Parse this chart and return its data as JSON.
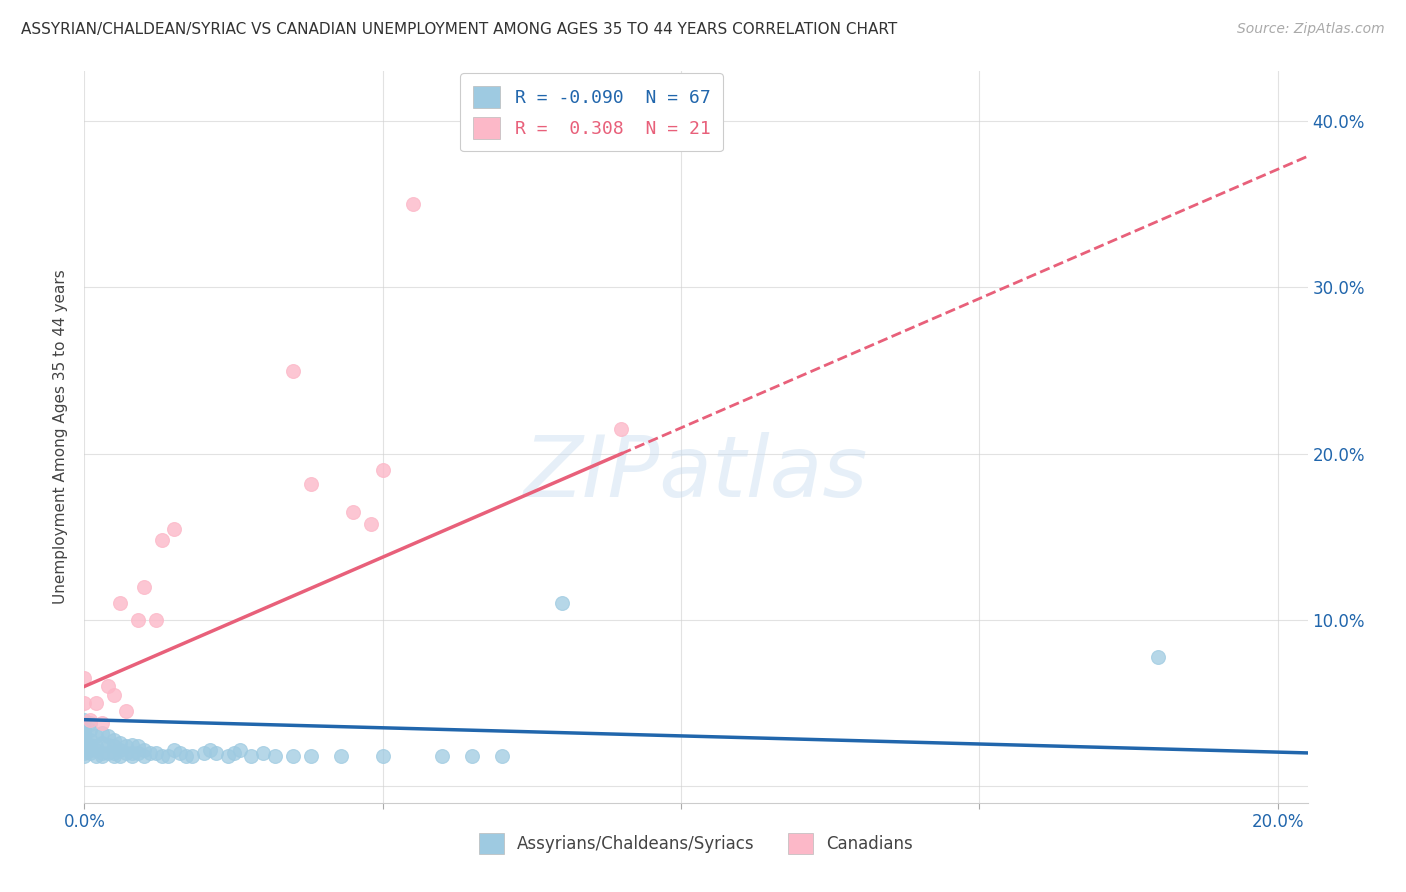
{
  "title": "ASSYRIAN/CHALDEAN/SYRIAC VS CANADIAN UNEMPLOYMENT AMONG AGES 35 TO 44 YEARS CORRELATION CHART",
  "source": "Source: ZipAtlas.com",
  "ylabel": "Unemployment Among Ages 35 to 44 years",
  "xlim": [
    0.0,
    0.205
  ],
  "ylim": [
    -0.01,
    0.43
  ],
  "legend_r_blue": "-0.090",
  "legend_n_blue": "67",
  "legend_r_pink": "0.308",
  "legend_n_pink": "21",
  "blue_color": "#9ecae1",
  "pink_color": "#fcb8c8",
  "blue_line_color": "#2166ac",
  "pink_line_color": "#e8607a",
  "blue_x": [
    0.0,
    0.0,
    0.0,
    0.0,
    0.0,
    0.0,
    0.0,
    0.0,
    0.001,
    0.001,
    0.001,
    0.001,
    0.001,
    0.001,
    0.002,
    0.002,
    0.002,
    0.002,
    0.003,
    0.003,
    0.003,
    0.003,
    0.004,
    0.004,
    0.004,
    0.005,
    0.005,
    0.005,
    0.005,
    0.006,
    0.006,
    0.006,
    0.007,
    0.007,
    0.008,
    0.008,
    0.008,
    0.009,
    0.009,
    0.01,
    0.01,
    0.011,
    0.012,
    0.013,
    0.014,
    0.015,
    0.016,
    0.017,
    0.018,
    0.02,
    0.021,
    0.022,
    0.024,
    0.025,
    0.026,
    0.028,
    0.03,
    0.032,
    0.035,
    0.038,
    0.043,
    0.05,
    0.06,
    0.065,
    0.07,
    0.08,
    0.18
  ],
  "blue_y": [
    0.02,
    0.025,
    0.03,
    0.035,
    0.04,
    0.028,
    0.032,
    0.018,
    0.022,
    0.028,
    0.034,
    0.038,
    0.02,
    0.025,
    0.018,
    0.024,
    0.03,
    0.022,
    0.02,
    0.026,
    0.032,
    0.018,
    0.02,
    0.025,
    0.03,
    0.02,
    0.024,
    0.028,
    0.018,
    0.022,
    0.026,
    0.018,
    0.02,
    0.024,
    0.02,
    0.025,
    0.018,
    0.02,
    0.024,
    0.018,
    0.022,
    0.02,
    0.02,
    0.018,
    0.018,
    0.022,
    0.02,
    0.018,
    0.018,
    0.02,
    0.022,
    0.02,
    0.018,
    0.02,
    0.022,
    0.018,
    0.02,
    0.018,
    0.018,
    0.018,
    0.018,
    0.018,
    0.018,
    0.018,
    0.018,
    0.11,
    0.078
  ],
  "pink_x": [
    0.0,
    0.0,
    0.001,
    0.002,
    0.003,
    0.004,
    0.005,
    0.006,
    0.007,
    0.009,
    0.01,
    0.012,
    0.013,
    0.015,
    0.035,
    0.038,
    0.045,
    0.048,
    0.05,
    0.055,
    0.09
  ],
  "pink_y": [
    0.05,
    0.065,
    0.04,
    0.05,
    0.038,
    0.06,
    0.055,
    0.11,
    0.045,
    0.1,
    0.12,
    0.1,
    0.148,
    0.155,
    0.25,
    0.182,
    0.165,
    0.158,
    0.19,
    0.35,
    0.215
  ],
  "pink_line_start_x": 0.0,
  "pink_line_start_y": 0.06,
  "pink_line_end_x": 0.09,
  "pink_line_end_y": 0.2,
  "blue_line_start_x": 0.0,
  "blue_line_start_y": 0.04,
  "blue_line_end_x": 0.205,
  "blue_line_end_y": 0.02
}
